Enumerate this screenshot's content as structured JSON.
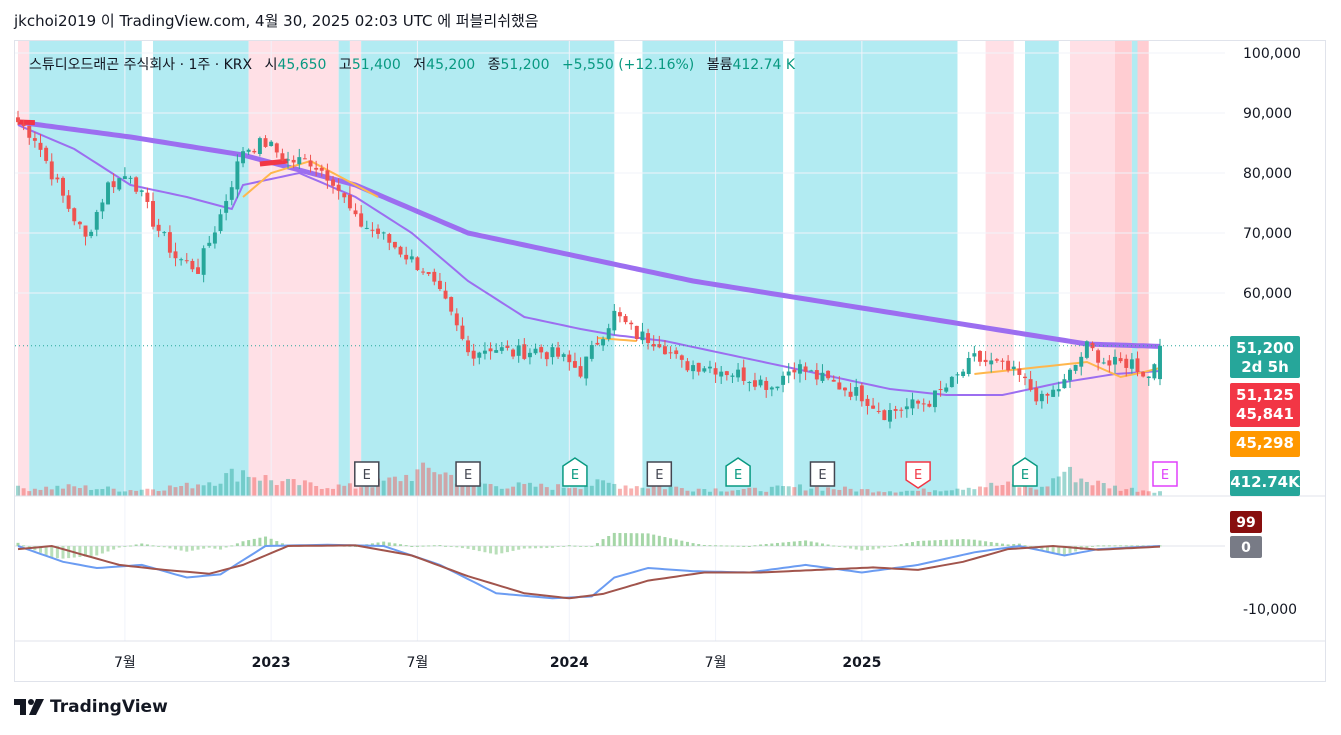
{
  "header": {
    "published": "jkchoi2019 이 TradingView.com, 4월 30, 2025 02:03 UTC 에 퍼블리쉬했음"
  },
  "legend": {
    "symbol": "스튜디오드래곤 주식회사 · 1주 · KRX",
    "open_label": "시",
    "open": "45,650",
    "high_label": "고",
    "high": "51,400",
    "low_label": "저",
    "low": "45,200",
    "close_label": "종",
    "close": "51,200",
    "change": "+5,550 (+12.16%)",
    "volume_label": "볼륨",
    "volume": "412.74 K"
  },
  "footer": {
    "brand": "TradingView"
  },
  "colors": {
    "up": "#26a69a",
    "down": "#ef5350",
    "ma_purple": "#9c6ef0",
    "ma_orange": "#ffb74d",
    "macd_line": "#6b9cf2",
    "signal_line": "#a1544c",
    "hist_up": "#a5d6a7",
    "hist_down": "#c8e6c9",
    "band_blue": "#b2ebf2",
    "band_pink": "#ffe0e6",
    "band_red": "#ffcdd2"
  },
  "chart_data": {
    "type": "candlestick",
    "timeframe": "1주",
    "price_axis": {
      "ticks": [
        "100,000",
        "90,000",
        "80,000",
        "70,000",
        "60,000"
      ],
      "ylim": [
        43500,
        101500
      ]
    },
    "macd_axis": {
      "ticks": [
        "-10,000"
      ]
    },
    "x_axis": {
      "ticks": [
        "7월",
        "2023",
        "7월",
        "2024",
        "7월",
        "2025"
      ]
    },
    "price_tags": [
      {
        "text": "51,200",
        "sub": "2d 5h",
        "color": "#26a69a"
      },
      {
        "text": "51,125",
        "color": "#f23645"
      },
      {
        "text": "45,841",
        "color": "#f23645"
      },
      {
        "text": "45,298",
        "color": "#ff9800"
      },
      {
        "text": "412.74K",
        "color": "#26a69a"
      }
    ],
    "macd_tags": [
      {
        "text": "99",
        "color": "#880e0e"
      },
      {
        "text": "0",
        "color": "#787b86"
      }
    ],
    "earnings_markers": [
      "E",
      "E",
      "E",
      "E",
      "E",
      "E",
      "E",
      "E",
      "E"
    ],
    "close_anchors": [
      [
        0,
        88500
      ],
      [
        3,
        86000
      ],
      [
        8,
        76000
      ],
      [
        12,
        69000
      ],
      [
        16,
        78000
      ],
      [
        20,
        80000
      ],
      [
        24,
        72000
      ],
      [
        28,
        66000
      ],
      [
        32,
        64000
      ],
      [
        36,
        73000
      ],
      [
        40,
        84000
      ],
      [
        44,
        85000
      ],
      [
        48,
        82000
      ],
      [
        52,
        82000
      ],
      [
        56,
        79000
      ],
      [
        60,
        72000
      ],
      [
        64,
        70000
      ],
      [
        68,
        67000
      ],
      [
        72,
        64000
      ],
      [
        76,
        58000
      ],
      [
        80,
        50000
      ],
      [
        84,
        51000
      ],
      [
        88,
        50000
      ],
      [
        92,
        50500
      ],
      [
        96,
        49500
      ],
      [
        100,
        47000
      ],
      [
        103,
        52000
      ],
      [
        106,
        56500
      ],
      [
        110,
        53000
      ],
      [
        114,
        52000
      ],
      [
        118,
        48000
      ],
      [
        122,
        48000
      ],
      [
        126,
        47000
      ],
      [
        130,
        46000
      ],
      [
        134,
        44500
      ],
      [
        138,
        48000
      ],
      [
        142,
        46000
      ],
      [
        146,
        44500
      ],
      [
        150,
        43000
      ],
      [
        154,
        40000
      ],
      [
        158,
        41000
      ],
      [
        162,
        42000
      ],
      [
        166,
        45000
      ],
      [
        170,
        49000
      ],
      [
        174,
        48000
      ],
      [
        178,
        46000
      ],
      [
        182,
        42000
      ],
      [
        186,
        45000
      ],
      [
        190,
        51000
      ],
      [
        194,
        48000
      ],
      [
        198,
        48500
      ],
      [
        201,
        46000
      ],
      [
        203,
        51200
      ]
    ],
    "ma_fast_anchors": [
      [
        0,
        88000
      ],
      [
        10,
        84000
      ],
      [
        20,
        78000
      ],
      [
        30,
        76000
      ],
      [
        38,
        74000
      ],
      [
        40,
        78000
      ],
      [
        50,
        80000
      ],
      [
        60,
        76000
      ],
      [
        70,
        70000
      ],
      [
        80,
        62000
      ],
      [
        90,
        56000
      ],
      [
        100,
        54000
      ],
      [
        106,
        53000
      ],
      [
        115,
        52000
      ],
      [
        125,
        50000
      ],
      [
        135,
        48000
      ],
      [
        145,
        46000
      ],
      [
        155,
        44000
      ],
      [
        165,
        43000
      ],
      [
        175,
        43000
      ],
      [
        185,
        45000
      ],
      [
        195,
        46500
      ],
      [
        203,
        47000
      ]
    ],
    "ma_slow_anchors": [
      [
        0,
        88500
      ],
      [
        20,
        86000
      ],
      [
        40,
        83000
      ],
      [
        60,
        78000
      ],
      [
        80,
        70000
      ],
      [
        100,
        66000
      ],
      [
        120,
        62000
      ],
      [
        140,
        59000
      ],
      [
        160,
        56000
      ],
      [
        180,
        53000
      ],
      [
        190,
        51500
      ],
      [
        203,
        51100
      ]
    ],
    "ma_orange_anchors": [
      [
        40,
        76000
      ],
      [
        45,
        80000
      ],
      [
        52,
        82000
      ],
      [
        58,
        79000
      ],
      [
        64,
        76000
      ],
      [
        103,
        52500
      ],
      [
        110,
        52000
      ],
      [
        170,
        46500
      ],
      [
        180,
        47500
      ],
      [
        190,
        48500
      ],
      [
        196,
        46000
      ],
      [
        200,
        46800
      ],
      [
        203,
        47500
      ]
    ],
    "macd_anchors": [
      [
        0,
        0
      ],
      [
        8,
        -2500
      ],
      [
        14,
        -3500
      ],
      [
        22,
        -3000
      ],
      [
        30,
        -5000
      ],
      [
        36,
        -4500
      ],
      [
        44,
        0
      ],
      [
        55,
        200
      ],
      [
        65,
        0
      ],
      [
        75,
        -3000
      ],
      [
        85,
        -7500
      ],
      [
        95,
        -8300
      ],
      [
        102,
        -8000
      ],
      [
        106,
        -5000
      ],
      [
        112,
        -3500
      ],
      [
        120,
        -4000
      ],
      [
        130,
        -4200
      ],
      [
        140,
        -3000
      ],
      [
        150,
        -4200
      ],
      [
        160,
        -3000
      ],
      [
        170,
        -1000
      ],
      [
        178,
        0
      ],
      [
        186,
        -1500
      ],
      [
        192,
        -500
      ],
      [
        203,
        0
      ]
    ],
    "signal_anchors": [
      [
        0,
        -500
      ],
      [
        6,
        0
      ],
      [
        12,
        -1500
      ],
      [
        18,
        -3000
      ],
      [
        26,
        -3800
      ],
      [
        34,
        -4400
      ],
      [
        40,
        -3000
      ],
      [
        48,
        0
      ],
      [
        60,
        100
      ],
      [
        70,
        -1500
      ],
      [
        80,
        -4800
      ],
      [
        90,
        -7500
      ],
      [
        98,
        -8300
      ],
      [
        104,
        -7600
      ],
      [
        112,
        -5500
      ],
      [
        122,
        -4200
      ],
      [
        132,
        -4200
      ],
      [
        142,
        -3800
      ],
      [
        152,
        -3400
      ],
      [
        160,
        -3800
      ],
      [
        168,
        -2500
      ],
      [
        176,
        -500
      ],
      [
        184,
        0
      ],
      [
        192,
        -600
      ],
      [
        203,
        -100
      ]
    ],
    "volume_anchors": [
      [
        0,
        0.15
      ],
      [
        10,
        0.18
      ],
      [
        20,
        0.12
      ],
      [
        30,
        0.2
      ],
      [
        36,
        0.35
      ],
      [
        40,
        0.5
      ],
      [
        46,
        0.28
      ],
      [
        52,
        0.22
      ],
      [
        60,
        0.18
      ],
      [
        66,
        0.3
      ],
      [
        74,
        0.55
      ],
      [
        78,
        0.35
      ],
      [
        84,
        0.22
      ],
      [
        96,
        0.18
      ],
      [
        104,
        0.25
      ],
      [
        110,
        0.2
      ],
      [
        120,
        0.15
      ],
      [
        130,
        0.12
      ],
      [
        140,
        0.18
      ],
      [
        150,
        0.12
      ],
      [
        160,
        0.1
      ],
      [
        170,
        0.2
      ],
      [
        176,
        0.22
      ],
      [
        182,
        0.15
      ],
      [
        186,
        0.5
      ],
      [
        190,
        0.3
      ],
      [
        196,
        0.15
      ],
      [
        203,
        0.1
      ]
    ]
  }
}
